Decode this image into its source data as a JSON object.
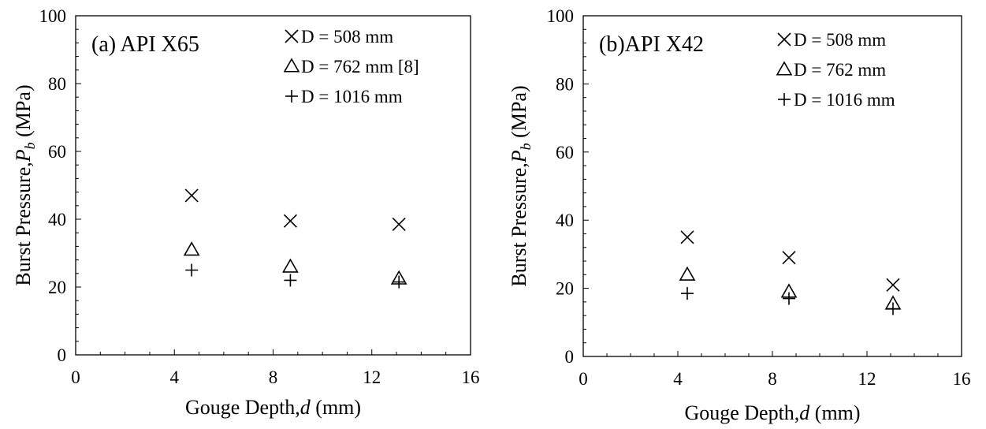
{
  "chart_data": [
    {
      "type": "scatter",
      "panel_label": "(a) API X65",
      "xlabel": {
        "prefix": "Gouge Depth,",
        "var": "d",
        "suffix": " (mm)"
      },
      "ylabel": {
        "prefix": "Burst  Pressure,",
        "var": "P",
        "sub": "b",
        "suffix": " (MPa)"
      },
      "xlim": [
        0,
        16
      ],
      "ylim": [
        0,
        100
      ],
      "xticks": [
        "0",
        "4",
        "8",
        "12",
        "16"
      ],
      "yticks": [
        "0",
        "20",
        "40",
        "60",
        "80",
        "100"
      ],
      "grid": false,
      "legend_position": "top-right",
      "series": [
        {
          "name": "D = 508 mm",
          "marker": "x",
          "x": [
            4.7,
            8.7,
            13.1
          ],
          "y": [
            47,
            39.5,
            38.5
          ]
        },
        {
          "name": "D = 762 mm [8]",
          "marker": "triangle",
          "x": [
            4.7,
            8.7,
            13.1
          ],
          "y": [
            31,
            26,
            22.5
          ]
        },
        {
          "name": "D = 1016 mm",
          "marker": "plus",
          "x": [
            4.7,
            8.7,
            13.1
          ],
          "y": [
            25,
            22,
            21.5
          ]
        }
      ]
    },
    {
      "type": "scatter",
      "panel_label": "(b)API X42",
      "xlabel": {
        "prefix": "Gouge Depth,",
        "var": "d",
        "suffix": " (mm)"
      },
      "ylabel": {
        "prefix": "Burst Pressure,",
        "var": "P",
        "sub": "b",
        "suffix": " (MPa)"
      },
      "xlim": [
        0,
        16
      ],
      "ylim": [
        0,
        100
      ],
      "xticks": [
        "0",
        "4",
        "8",
        "12",
        "16"
      ],
      "yticks": [
        "0",
        "20",
        "40",
        "60",
        "80",
        "100"
      ],
      "grid": false,
      "legend_position": "top-right",
      "series": [
        {
          "name": "D = 508 mm",
          "marker": "x",
          "x": [
            4.4,
            8.7,
            13.1
          ],
          "y": [
            35,
            29,
            21
          ]
        },
        {
          "name": "D = 762 mm",
          "marker": "triangle",
          "x": [
            4.4,
            8.7,
            13.1
          ],
          "y": [
            24,
            19,
            15.5
          ]
        },
        {
          "name": "D = 1016 mm",
          "marker": "plus",
          "x": [
            4.4,
            8.7,
            13.1
          ],
          "y": [
            18.5,
            17,
            14
          ]
        }
      ]
    }
  ]
}
